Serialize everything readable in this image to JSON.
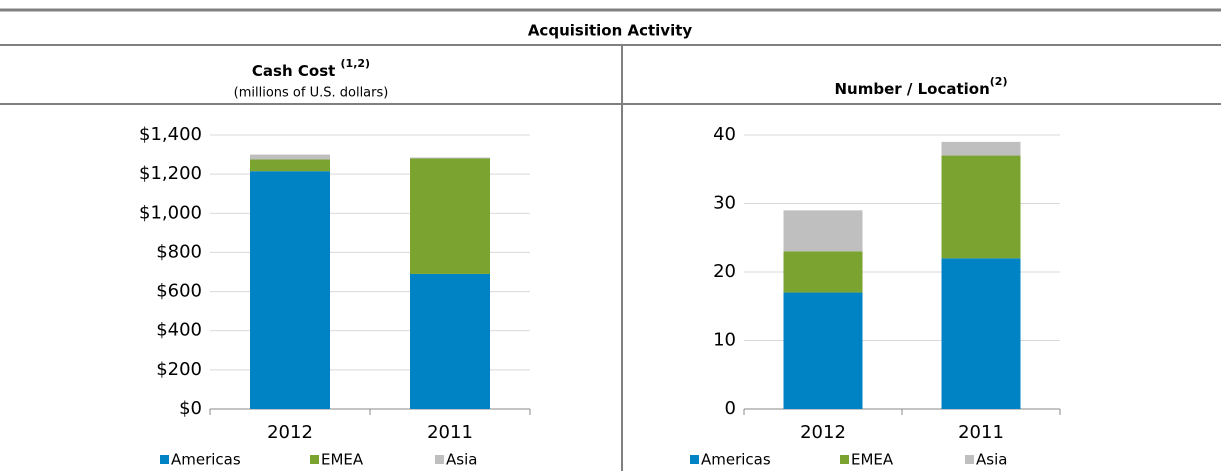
{
  "title": "Acquisition Activity",
  "chart_data": [
    {
      "type": "bar",
      "stacked": true,
      "title": "Cash Cost",
      "title_note": "(1,2)",
      "subtitle": "(millions of U.S. dollars)",
      "categories": [
        "2012",
        "2011"
      ],
      "series": [
        {
          "name": "Americas",
          "color": "#0083c4",
          "values": [
            1215,
            690
          ]
        },
        {
          "name": "EMEA",
          "color": "#7aa32f",
          "values": [
            60,
            590
          ]
        },
        {
          "name": "Asia",
          "color": "#bfbfbf",
          "values": [
            25,
            5
          ]
        }
      ],
      "ylim": [
        0,
        1400
      ],
      "yticks": [
        {
          "value": 0,
          "label": "$0"
        },
        {
          "value": 200,
          "label": "$200"
        },
        {
          "value": 400,
          "label": "$400"
        },
        {
          "value": 600,
          "label": "$600"
        },
        {
          "value": 800,
          "label": "$800"
        },
        {
          "value": 1000,
          "label": "$1,000"
        },
        {
          "value": 1200,
          "label": "$1,200"
        },
        {
          "value": 1400,
          "label": "$1,400"
        }
      ],
      "grid": true,
      "legend": "bottom"
    },
    {
      "type": "bar",
      "stacked": true,
      "title": "Number / Location",
      "title_note": "(2)",
      "categories": [
        "2012",
        "2011"
      ],
      "series": [
        {
          "name": "Americas",
          "color": "#0083c4",
          "values": [
            17,
            22
          ]
        },
        {
          "name": "EMEA",
          "color": "#7aa32f",
          "values": [
            6,
            15
          ]
        },
        {
          "name": "Asia",
          "color": "#bfbfbf",
          "values": [
            6,
            2
          ]
        }
      ],
      "ylim": [
        0,
        40
      ],
      "yticks": [
        0,
        10,
        20,
        30,
        40
      ],
      "grid": true,
      "legend": "bottom"
    }
  ]
}
